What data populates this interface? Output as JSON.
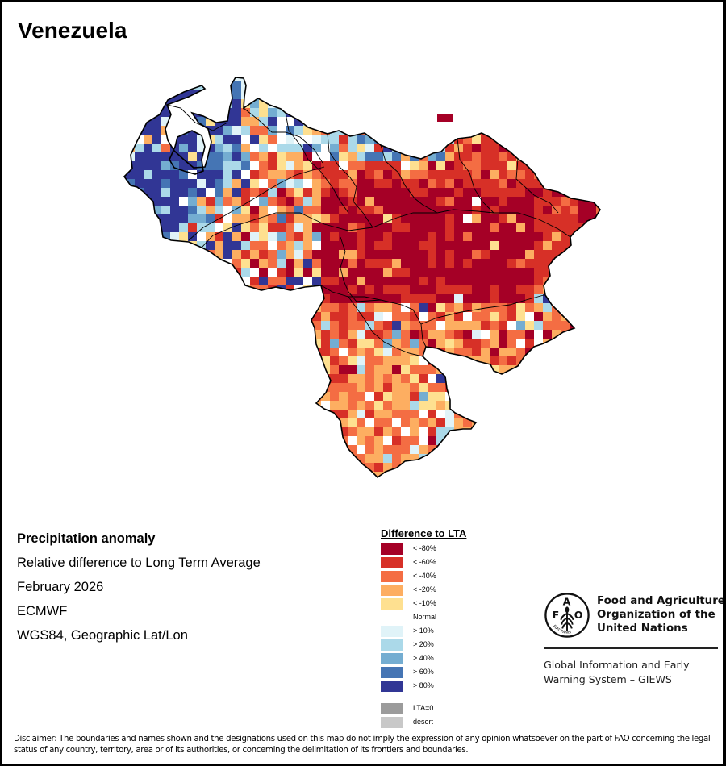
{
  "title": "Venezuela",
  "info": {
    "heading": "Precipitation anomaly",
    "lines": [
      "Relative difference to Long Term Average",
      "February 2026",
      "ECMWF",
      "WGS84, Geographic Lat/Lon"
    ]
  },
  "legend": {
    "title": "Difference to LTA",
    "classes": [
      {
        "label": "< -80%",
        "color": "#a50026"
      },
      {
        "label": "< -60%",
        "color": "#d73027"
      },
      {
        "label": "< -40%",
        "color": "#f46d43"
      },
      {
        "label": "< -20%",
        "color": "#fdae61"
      },
      {
        "label": "< -10%",
        "color": "#fee090"
      },
      {
        "label": "Normal",
        "color": "#ffffff"
      },
      {
        "label": "> 10%",
        "color": "#e0f3f8"
      },
      {
        "label": "> 20%",
        "color": "#abd9e9"
      },
      {
        "label": "> 40%",
        "color": "#74add1"
      },
      {
        "label": "> 60%",
        "color": "#4575b4"
      },
      {
        "label": "> 80%",
        "color": "#313695"
      }
    ],
    "extra": [
      {
        "label": "LTA=0",
        "color": "#9b9b9b"
      },
      {
        "label": "desert",
        "color": "#c8c8c8"
      }
    ]
  },
  "logo": {
    "org_lines": [
      "Food and Agriculture",
      "Organization of the",
      "United Nations"
    ],
    "system_lines": [
      "Global Information and Early",
      "Warning System – GIEWS"
    ],
    "seal_letters": "FAO",
    "seal_motto": "FIAT PANIS"
  },
  "disclaimer": "Disclaimer: The boundaries and names shown and the designations used on this map do not imply the expression of any opinion whatsoever on the part of FAO concerning the legal status of any country, territory, area or of its authorities, or concerning the delimitation of its frontiers and boundaries."
}
